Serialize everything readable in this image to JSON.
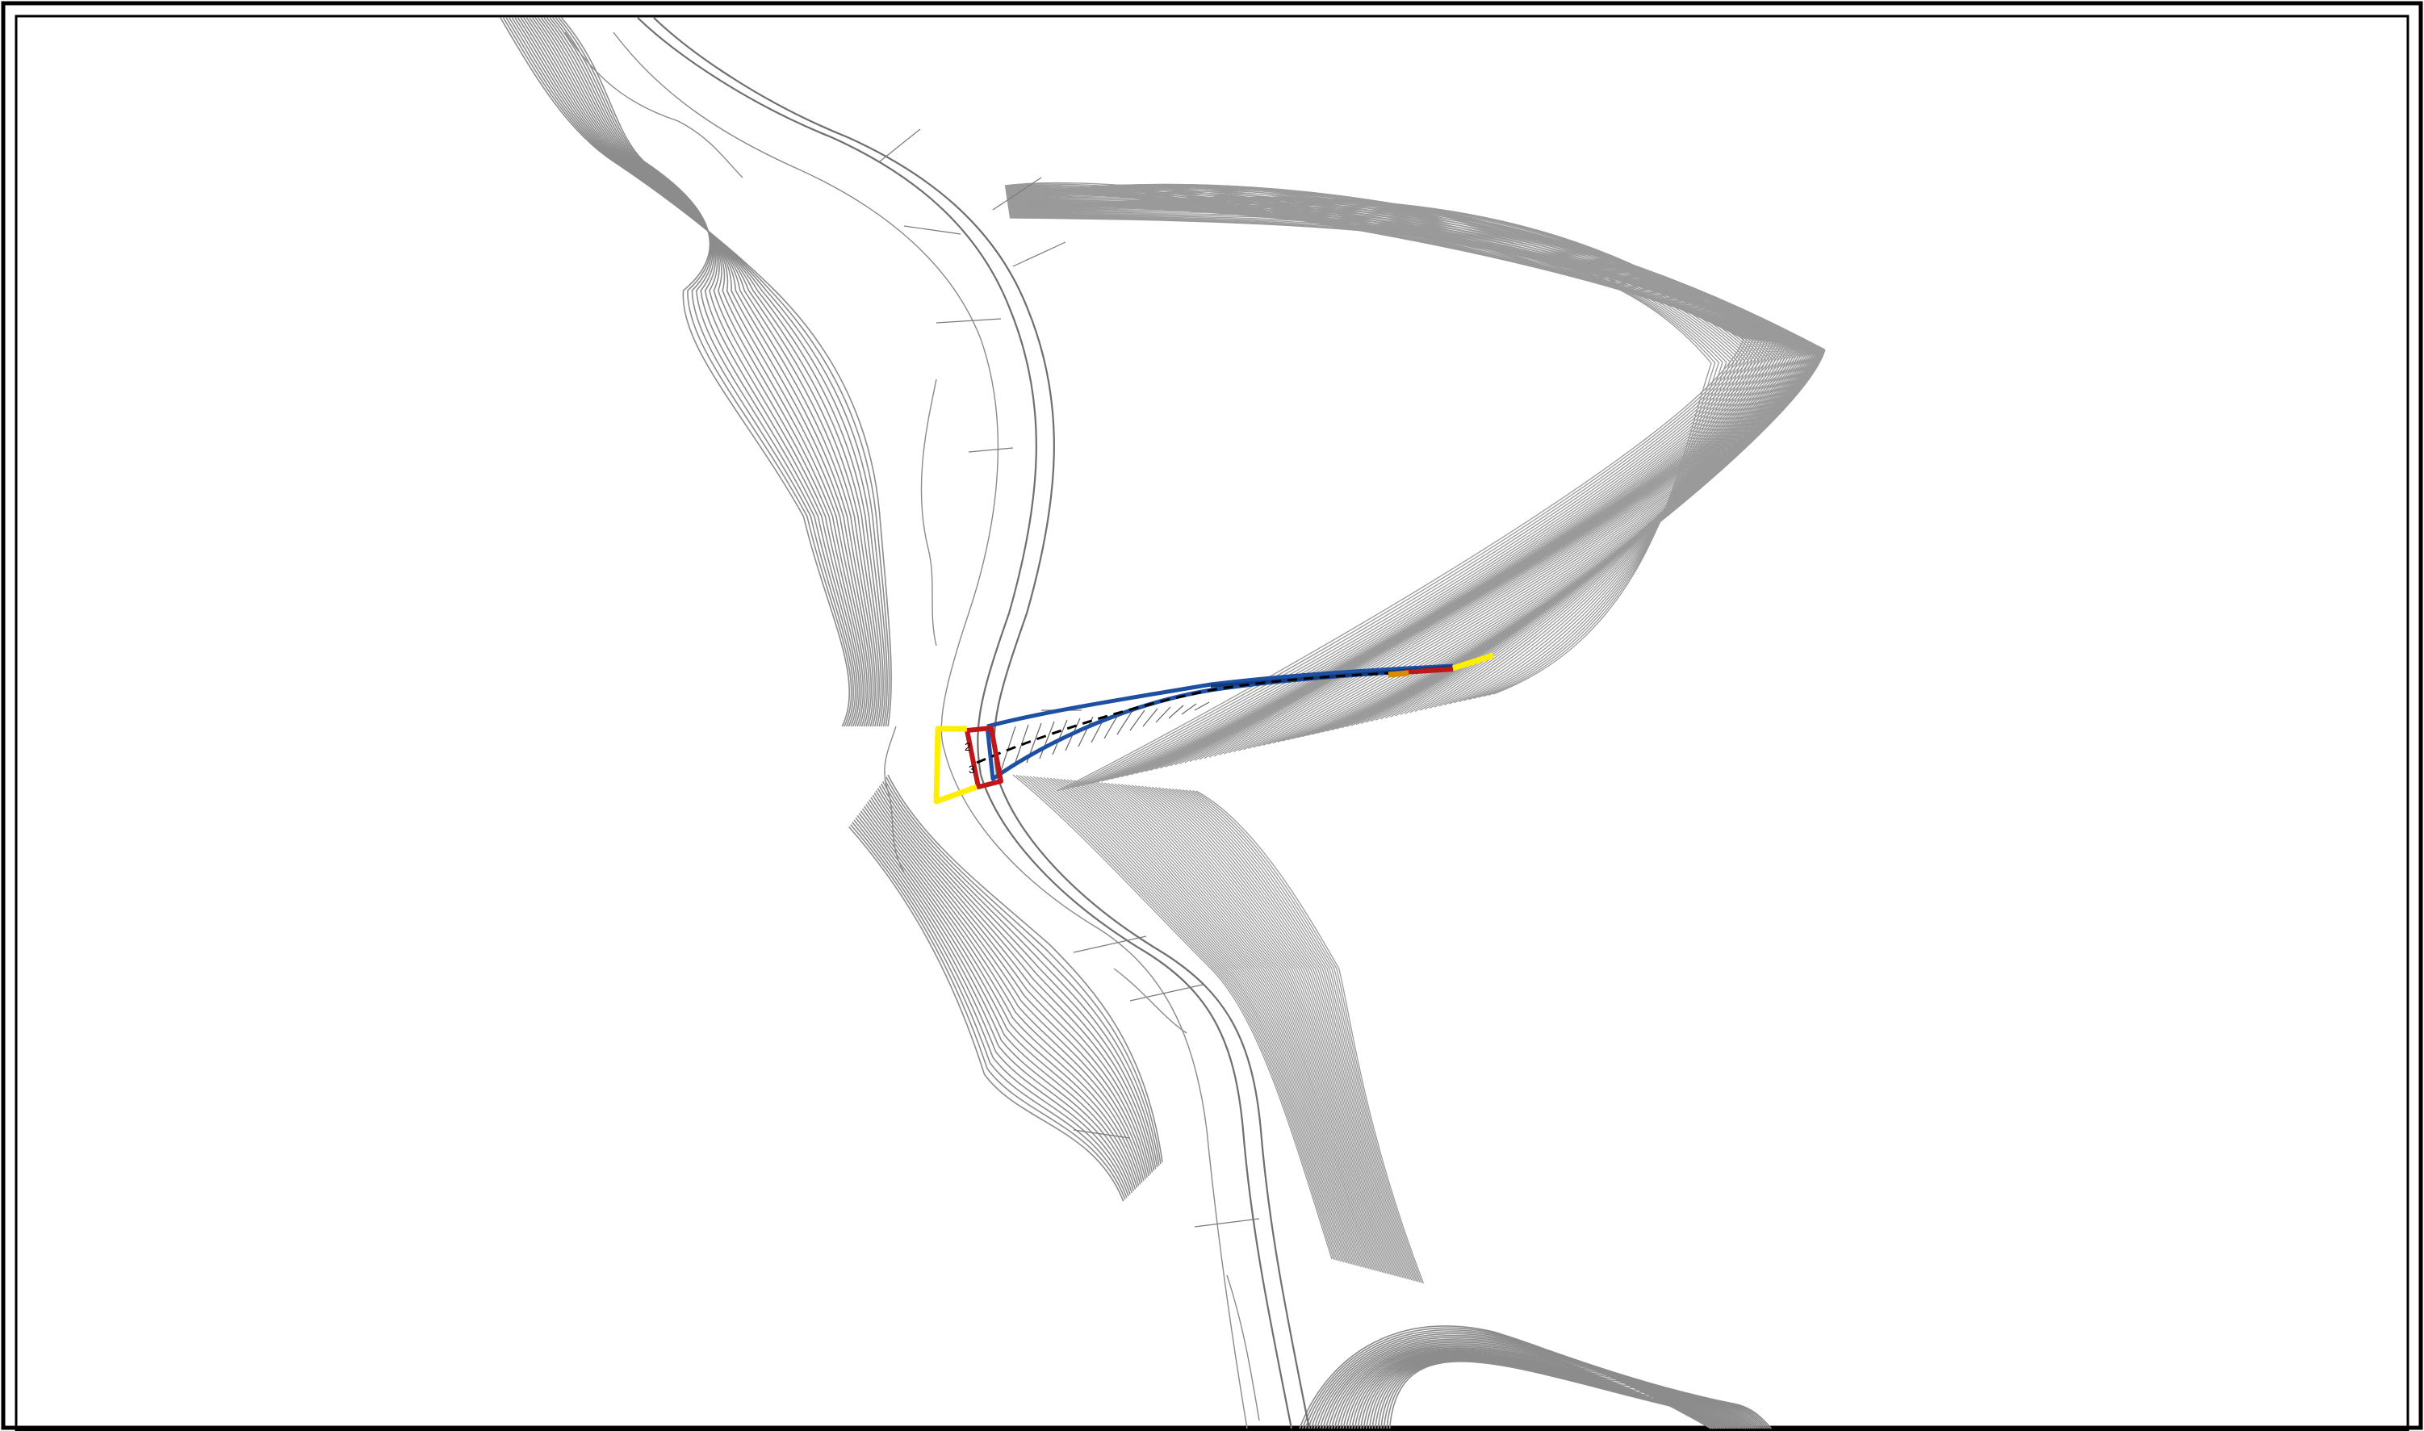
{
  "map": {
    "type": "topographic-site-plan",
    "labels": [
      {
        "text": "2"
      },
      {
        "text": "3"
      }
    ],
    "colors": {
      "contour": "#8c8c8c",
      "road": "#6f6f6f",
      "boundary_yellow": "#ffee00",
      "boundary_red": "#c0161a",
      "alignment_blue": "#1d4fa3",
      "alignment_dashed": "#000000",
      "frame": "#000000"
    }
  }
}
